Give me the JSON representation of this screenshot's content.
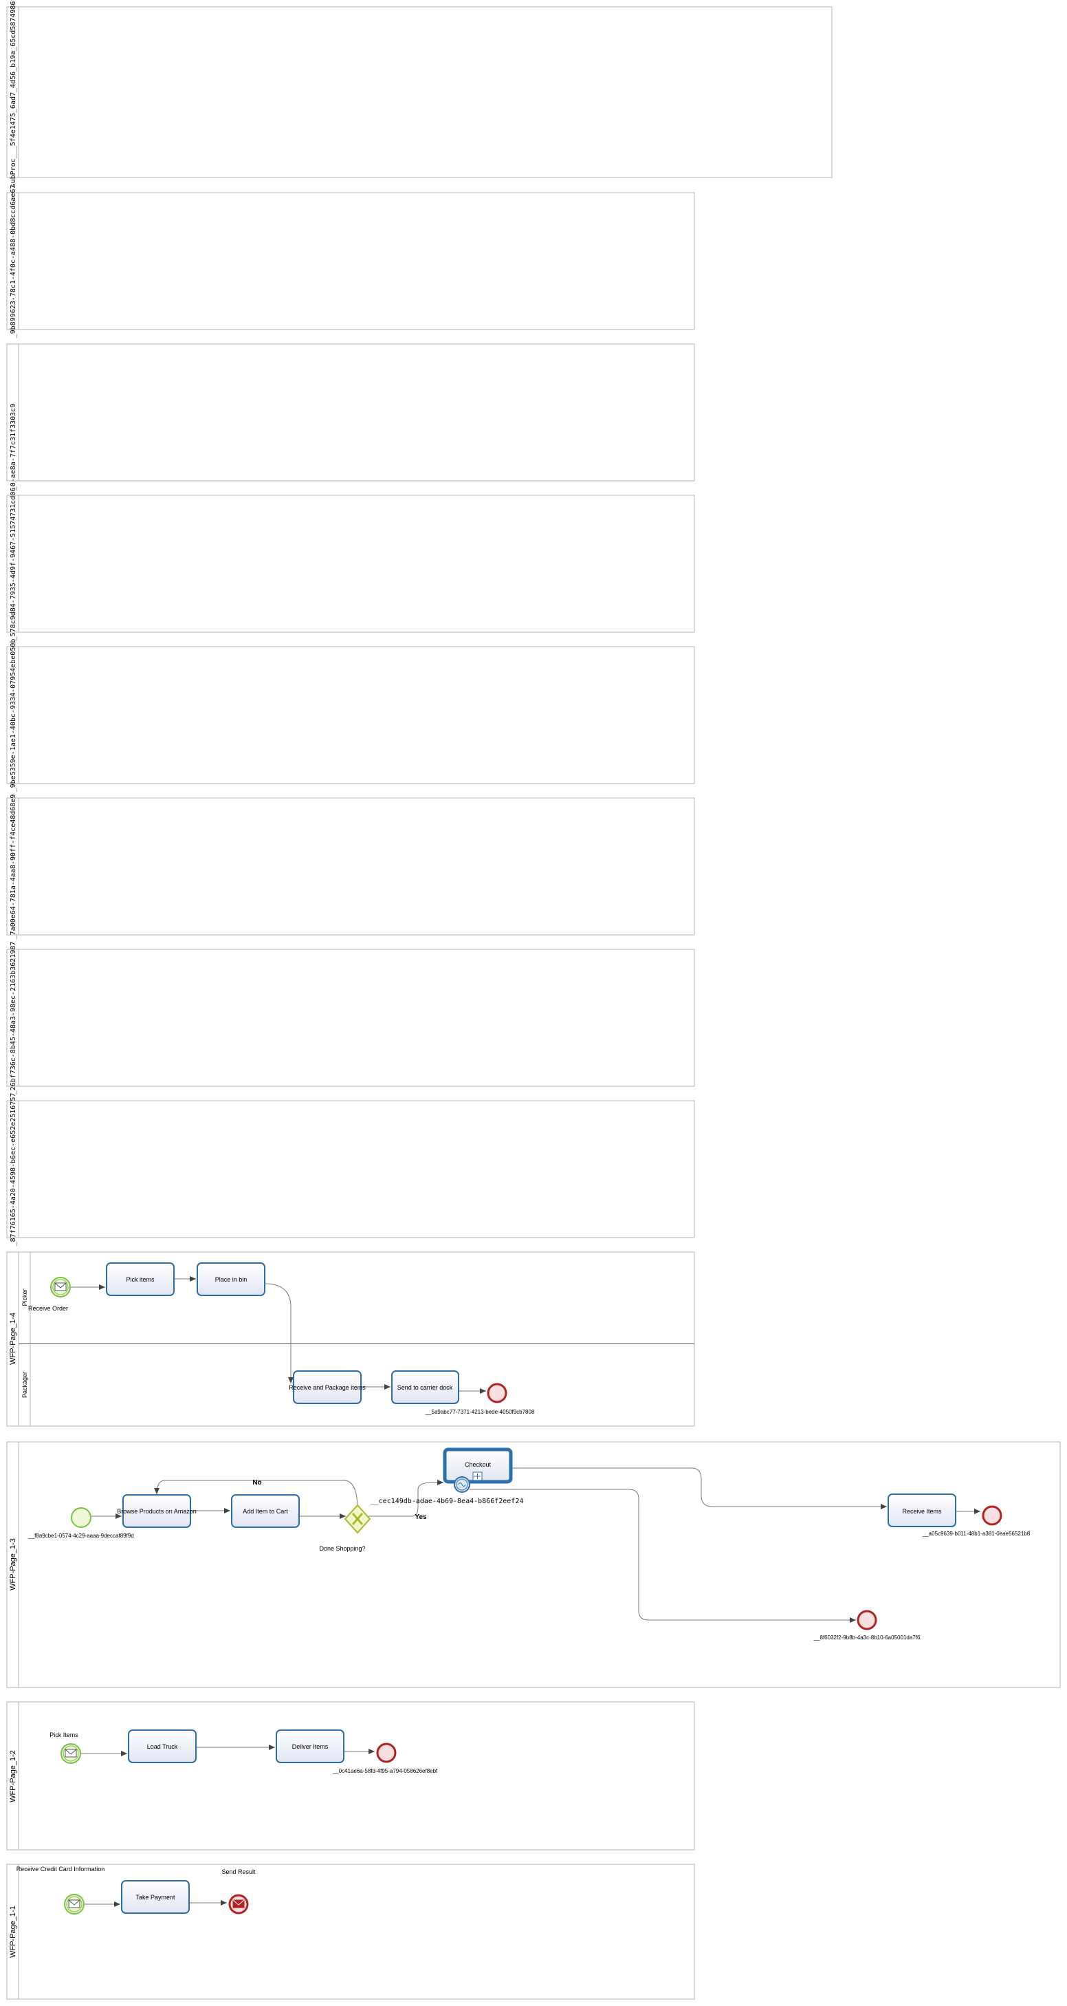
{
  "pools": [
    {
      "id": "p1",
      "label": "subProc___5f4e1475_6ad7_4d56_b19a_65cd5874986f",
      "lanes": []
    },
    {
      "id": "p2",
      "label": "_9b899623-78c1-4f0c-a488-0bd8ccd6ae67",
      "lanes": []
    },
    {
      "id": "p3",
      "label": "_0-ae8a-7f7c31f3303c9",
      "lanes": []
    },
    {
      "id": "p4",
      "label": "_578c9d84-7935-4d9f-9467-51574731cd06",
      "lanes": []
    },
    {
      "id": "p5",
      "label": "_9be5359e-1ae1-40bc-9334-07954ebe050b",
      "lanes": []
    },
    {
      "id": "p6",
      "label": "_7a00e64-781a-4aa8-90ff-f4ce48d68e9",
      "lanes": []
    },
    {
      "id": "p7",
      "label": "_26bf736c-8b45-48a3-98ec-2163b3621987",
      "lanes": []
    },
    {
      "id": "p8",
      "label": "_87f76165-4a20-4598-b6ec-e652e2516757",
      "lanes": []
    },
    {
      "id": "p9",
      "label": "WFP-Page_1-4",
      "lanes": [
        "Picker",
        "Packager"
      ]
    },
    {
      "id": "p10",
      "label": "WFP-Page_1-3",
      "lanes": []
    },
    {
      "id": "p11",
      "label": "WFP-Page_1-2",
      "lanes": []
    },
    {
      "id": "p12",
      "label": "WFP-Page_1-1",
      "lanes": []
    }
  ],
  "p9": {
    "start_label": "Receive Order",
    "tasks": [
      "Pick items",
      "Place in bin",
      "Receive and Package items",
      "Send to carrier dock"
    ],
    "end_label": "__5a9abc77-7371-4213-bede-4050f9cb7808"
  },
  "p10": {
    "start_label": "__f8a9cbe1-0574-4c29-aaaa-9deccaf89f9d",
    "tasks": [
      "Browse Products on Amazon",
      "Add Item to Cart",
      "Checkout",
      "Receive Items"
    ],
    "gateway_label": "Done Shopping?",
    "flow_no": "No",
    "flow_yes": "Yes",
    "boundary_label": "__cec149db-adae-4b69-8ea4-b866f2eef24",
    "end_label_1": "__a05c9639-b011-48b1-a381-0eae56521b8",
    "end_label_2": "__8f6032f2-9b8b-4a3c-8b10-6a05001da7f6"
  },
  "p11": {
    "start_label": "Pick Items",
    "tasks": [
      "Load Truck",
      "Deliver Items"
    ],
    "end_label": "__0c41ae6a-58fd-4f95-a794-058626ef8ebf"
  },
  "p12": {
    "start_label": "Receive Credit Card Information",
    "task": "Take Payment",
    "end_label": "Send Result"
  },
  "colors": {
    "pool_border": "#b4b4b4",
    "task_stroke": "#2b6ea8",
    "task_fill": "#eceef8",
    "start_stroke": "#7cc242",
    "start_fill": "#eef7d8",
    "end_stroke": "#b22222",
    "end_fill": "#f9e0e0",
    "gateway_stroke": "#a8b932",
    "gateway_fill": "#f3f6c6",
    "flow": "#777777"
  }
}
